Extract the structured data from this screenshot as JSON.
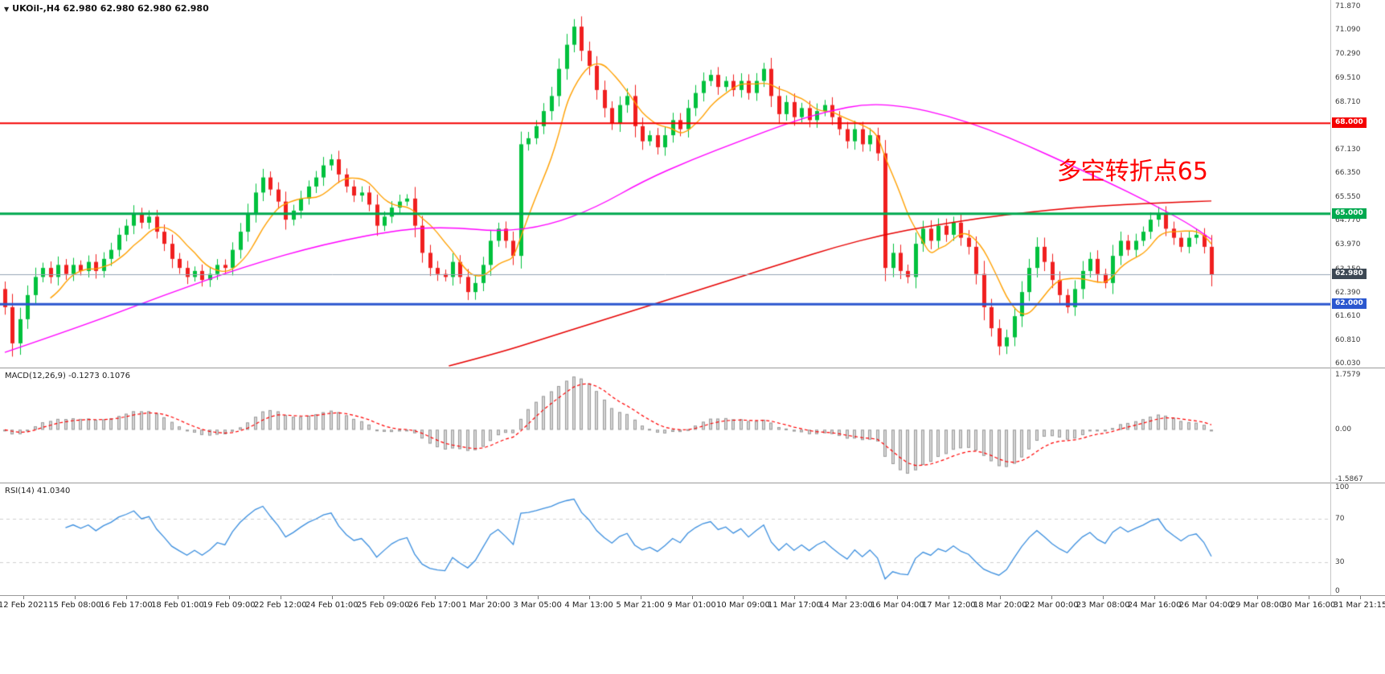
{
  "icons": {
    "collapse_triangle": "▼"
  },
  "chart_data": {
    "type": "candlestick",
    "symbol": "UKOil-",
    "timeframe": "H4",
    "title": "UKOil-,H4 62.980 62.980 62.980 62.980",
    "annotation": {
      "text": "多空转折点65",
      "color": "#ff0000"
    },
    "price_axis": {
      "min": 60.03,
      "max": 71.87,
      "ticks": [
        "71.870",
        "71.090",
        "70.290",
        "69.510",
        "68.710",
        "67.130",
        "66.350",
        "65.550",
        "64.770",
        "63.970",
        "63.150",
        "62.390",
        "61.610",
        "60.810",
        "60.030"
      ]
    },
    "first_open": 62.5,
    "closes": [
      61.9,
      60.7,
      61.5,
      62.3,
      62.9,
      63.2,
      62.9,
      63.3,
      63.0,
      63.3,
      63.1,
      63.4,
      63.1,
      63.5,
      63.8,
      64.3,
      64.6,
      65.0,
      64.7,
      64.9,
      64.4,
      64.0,
      63.5,
      63.2,
      62.9,
      63.1,
      62.8,
      63.0,
      63.3,
      63.2,
      63.8,
      64.4,
      65.0,
      65.7,
      66.2,
      65.8,
      65.4,
      64.8,
      65.1,
      65.5,
      65.9,
      66.2,
      66.6,
      66.8,
      66.3,
      65.9,
      65.6,
      65.7,
      65.3,
      64.6,
      64.9,
      65.2,
      65.4,
      65.5,
      64.6,
      63.7,
      63.2,
      63.0,
      62.9,
      63.4,
      62.9,
      62.4,
      62.7,
      63.3,
      64.1,
      64.5,
      64.1,
      63.6,
      67.3,
      67.5,
      67.9,
      68.4,
      68.9,
      69.8,
      70.6,
      71.2,
      70.4,
      69.9,
      69.1,
      68.5,
      68.0,
      68.6,
      68.9,
      67.9,
      67.4,
      67.6,
      67.2,
      67.6,
      68.1,
      67.8,
      68.5,
      69.0,
      69.4,
      69.6,
      69.2,
      69.4,
      69.1,
      69.4,
      69.0,
      69.4,
      69.8,
      68.9,
      68.3,
      68.7,
      68.2,
      68.5,
      68.1,
      68.4,
      68.6,
      68.2,
      67.8,
      67.4,
      67.8,
      67.3,
      67.6,
      67.0,
      63.2,
      63.7,
      63.1,
      62.9,
      64.0,
      64.5,
      64.1,
      64.6,
      64.3,
      64.7,
      64.2,
      63.9,
      63.0,
      61.9,
      61.2,
      60.6,
      60.9,
      61.6,
      62.4,
      63.2,
      63.9,
      63.4,
      62.8,
      62.3,
      61.9,
      62.5,
      63.1,
      63.5,
      63.0,
      62.7,
      63.6,
      64.1,
      63.8,
      64.1,
      64.4,
      64.8,
      65.0,
      64.5,
      64.2,
      63.9,
      64.2,
      64.3,
      63.9,
      62.98
    ],
    "candle_colors": {
      "up": "#00c13d",
      "down": "#f01f1f"
    },
    "levels": [
      {
        "label": "68.000",
        "price": 68.0,
        "color": "#f40000",
        "width": 2
      },
      {
        "label": "65.000",
        "price": 65.0,
        "color": "#00a94f",
        "width": 3
      },
      {
        "label": "62.000",
        "price": 62.0,
        "color": "#2b57cf",
        "width": 3
      }
    ],
    "current_price": {
      "label": "62.980",
      "price": 62.98,
      "line_color": "#96a4b4",
      "badge_color": "#3d4854"
    },
    "moving_averages": [
      {
        "name": "fast",
        "color": "#ffa000",
        "type": "sma",
        "period": 7
      },
      {
        "name": "medium",
        "color": "#ff00ff",
        "type": "waypoints",
        "points": [
          [
            0,
            60.4
          ],
          [
            0.066,
            61.3
          ],
          [
            0.132,
            62.3
          ],
          [
            0.199,
            63.25
          ],
          [
            0.265,
            64.0
          ],
          [
            0.331,
            64.5
          ],
          [
            0.371,
            64.55
          ],
          [
            0.411,
            64.4
          ],
          [
            0.45,
            64.6
          ],
          [
            0.49,
            65.2
          ],
          [
            0.53,
            66.1
          ],
          [
            0.57,
            66.8
          ],
          [
            0.609,
            67.4
          ],
          [
            0.649,
            68.0
          ],
          [
            0.682,
            68.4
          ],
          [
            0.715,
            68.65
          ],
          [
            0.748,
            68.55
          ],
          [
            0.781,
            68.25
          ],
          [
            0.815,
            67.8
          ],
          [
            0.848,
            67.25
          ],
          [
            0.881,
            66.65
          ],
          [
            0.914,
            66.05
          ],
          [
            0.947,
            65.4
          ],
          [
            0.98,
            64.7
          ],
          [
            1,
            64.15
          ]
        ]
      },
      {
        "name": "slow",
        "color": "#e60000",
        "type": "waypoints",
        "points": [
          [
            0.368,
            59.95
          ],
          [
            0.411,
            60.4
          ],
          [
            0.45,
            60.9
          ],
          [
            0.49,
            61.4
          ],
          [
            0.53,
            61.9
          ],
          [
            0.57,
            62.4
          ],
          [
            0.609,
            62.9
          ],
          [
            0.649,
            63.4
          ],
          [
            0.689,
            63.9
          ],
          [
            0.728,
            64.3
          ],
          [
            0.768,
            64.6
          ],
          [
            0.808,
            64.85
          ],
          [
            0.848,
            65.05
          ],
          [
            0.887,
            65.2
          ],
          [
            0.927,
            65.3
          ],
          [
            0.967,
            65.37
          ],
          [
            1,
            65.42
          ]
        ]
      }
    ],
    "macd": {
      "label": "MACD(12,26,9)",
      "value_macd": "-0.1273",
      "value_signal": "0.1076",
      "ticks": [
        "1.7579",
        "0.00",
        "-1.5867"
      ],
      "hist_fill": "#d6d6d6",
      "hist_stroke": "#9b9b9b",
      "signal_color": "#ff0000",
      "fast": 7,
      "slow": 15,
      "signal": 5,
      "peak": 1.7
    },
    "rsi": {
      "label": "RSI(14)",
      "value": "41.0340",
      "ticks": [
        "100",
        "70",
        "30",
        "0"
      ],
      "line_color": "#3b8ede",
      "guide_levels": [
        70,
        30
      ],
      "period": 8
    },
    "x_axis": {
      "dates": [
        "12 Feb 2021",
        "15 Feb 08:00",
        "16 Feb 17:00",
        "18 Feb 01:00",
        "19 Feb 09:00",
        "22 Feb 12:00",
        "24 Feb 01:00",
        "25 Feb 09:00",
        "26 Feb 17:00",
        "1 Mar 20:00",
        "3 Mar 05:00",
        "4 Mar 13:00",
        "5 Mar 21:00",
        "9 Mar 01:00",
        "10 Mar 09:00",
        "11 Mar 17:00",
        "14 Mar 23:00",
        "16 Mar 04:00",
        "17 Mar 12:00",
        "18 Mar 20:00",
        "22 Mar 00:00",
        "23 Mar 08:00",
        "24 Mar 16:00",
        "26 Mar 04:00",
        "29 Mar 08:00",
        "30 Mar 16:00",
        "31 Mar 21:15"
      ]
    }
  }
}
